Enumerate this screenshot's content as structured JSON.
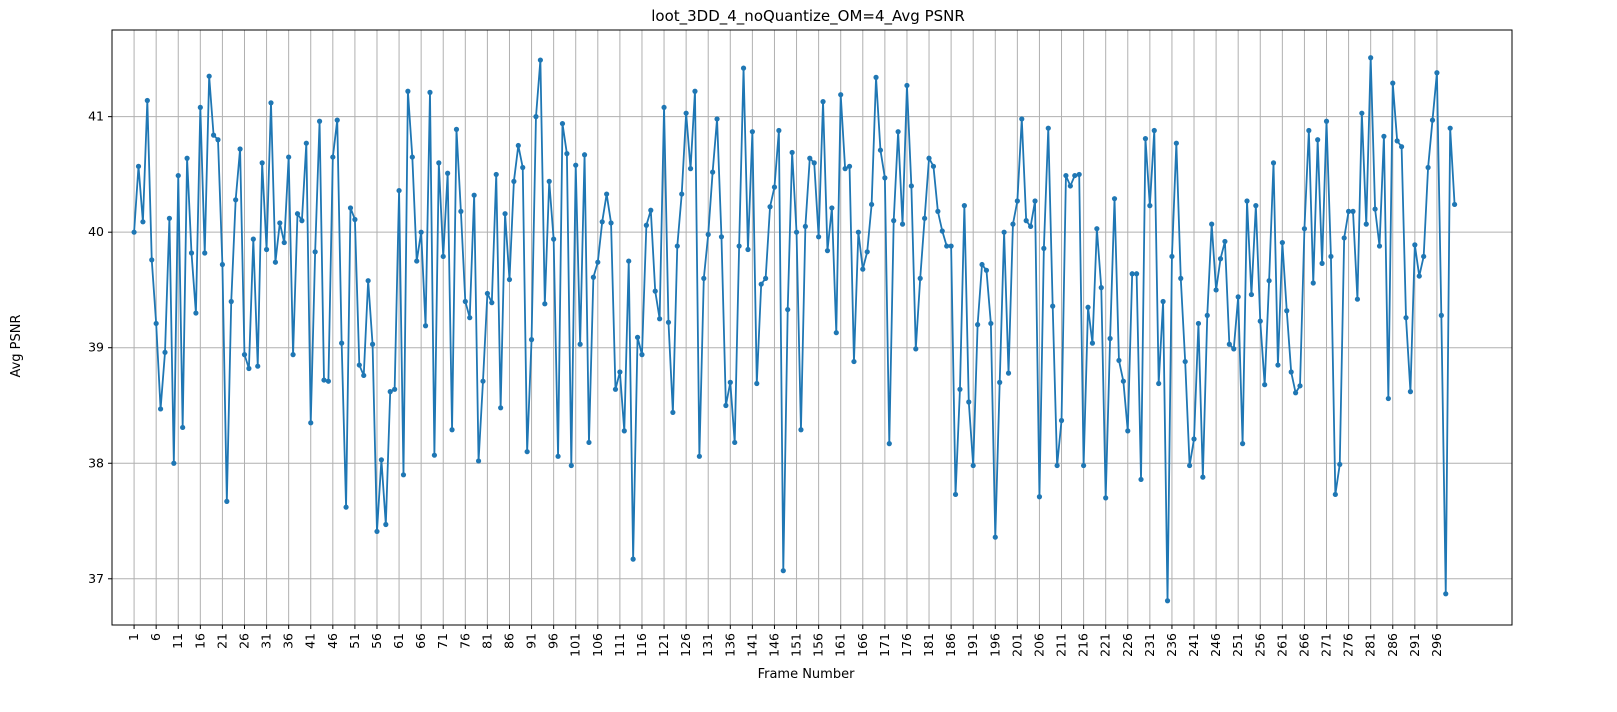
{
  "chart_data": {
    "type": "line",
    "title": "loot_3DD_4_noQuantize_OM=4_Avg PSNR",
    "xlabel": "Frame Number",
    "ylabel": "Avg PSNR",
    "grid": true,
    "ylim": [
      36.6,
      41.75
    ],
    "xlim": [
      -4,
      313
    ],
    "color": "#1f77b4",
    "xticks": [
      1,
      6,
      11,
      16,
      21,
      26,
      31,
      36,
      41,
      46,
      51,
      56,
      61,
      66,
      71,
      76,
      81,
      86,
      91,
      96,
      101,
      106,
      111,
      116,
      121,
      126,
      131,
      136,
      141,
      146,
      151,
      156,
      161,
      166,
      171,
      176,
      181,
      186,
      191,
      196,
      201,
      206,
      211,
      216,
      221,
      226,
      231,
      236,
      241,
      246,
      251,
      256,
      261,
      266,
      271,
      276,
      281,
      286,
      291,
      296
    ],
    "yticks": [
      37,
      38,
      39,
      40,
      41
    ],
    "series": [
      {
        "x_start": 1,
        "values": [
          40.0,
          40.57,
          40.09,
          41.14,
          39.76,
          39.21,
          38.47,
          38.96,
          40.12,
          38.0,
          40.49,
          38.31,
          40.64,
          39.82,
          39.3,
          41.08,
          39.82,
          41.35,
          40.84,
          40.8,
          39.72,
          37.67,
          39.4,
          40.28,
          40.72,
          38.94,
          38.82,
          39.94,
          38.84,
          40.6,
          39.85,
          41.12,
          39.74,
          40.08,
          39.91,
          40.65,
          38.94,
          40.16,
          40.1,
          40.77,
          38.35,
          39.83,
          40.96,
          38.72,
          38.71,
          40.65,
          40.97,
          39.04,
          37.62,
          40.21,
          40.11,
          38.85,
          38.76,
          39.58,
          39.03,
          37.41,
          38.03,
          37.47,
          38.62,
          38.64,
          40.36,
          37.9,
          41.22,
          40.65,
          39.75,
          40.0,
          39.19,
          41.21,
          38.07,
          40.6,
          39.79,
          40.51,
          38.29,
          40.89,
          40.18,
          39.4,
          39.26,
          40.32,
          38.02,
          38.71,
          39.47,
          39.39,
          40.5,
          38.48,
          40.16,
          39.59,
          40.44,
          40.75,
          40.56,
          38.1,
          39.07,
          41.0,
          41.49,
          39.38,
          40.44,
          39.94,
          38.06,
          40.94,
          40.68,
          37.98,
          40.58,
          39.03,
          40.67,
          38.18,
          39.61,
          39.74,
          40.09,
          40.33,
          40.08,
          38.64,
          38.79,
          38.28,
          39.75,
          37.17,
          39.09,
          38.94,
          40.06,
          40.19,
          39.49,
          39.25,
          41.08,
          39.22,
          38.44,
          39.88,
          40.33,
          41.03,
          40.55,
          41.22,
          38.06,
          39.6,
          39.98,
          40.52,
          40.98,
          39.96,
          38.5,
          38.7,
          38.18,
          39.88,
          41.42,
          39.85,
          40.87,
          38.69,
          39.55,
          39.6,
          40.22,
          40.39,
          40.88,
          37.07,
          39.33,
          40.69,
          40.0,
          38.29,
          40.05,
          40.64,
          40.6,
          39.96,
          41.13,
          39.84,
          40.21,
          39.13,
          41.19,
          40.55,
          40.57,
          38.88,
          40.0,
          39.68,
          39.83,
          40.24,
          41.34,
          40.71,
          40.47,
          38.17,
          40.1,
          40.87,
          40.07,
          41.27,
          40.4,
          38.99,
          39.6,
          40.12,
          40.64,
          40.57,
          40.18,
          40.01,
          39.88,
          39.88,
          37.73,
          38.64,
          40.23,
          38.53,
          37.98,
          39.2,
          39.72,
          39.67,
          39.21,
          37.36,
          38.7,
          40.0,
          38.78,
          40.07,
          40.27,
          40.98,
          40.1,
          40.05,
          40.27,
          37.71,
          39.86,
          40.9,
          39.36,
          37.98,
          38.37,
          40.49,
          40.4,
          40.49,
          40.5,
          37.98,
          39.35,
          39.04,
          40.03,
          39.52,
          37.7,
          39.08,
          40.29,
          38.89,
          38.71,
          38.28,
          39.64,
          39.64,
          37.86,
          40.81,
          40.23,
          40.88,
          38.69,
          39.4,
          36.81,
          39.79,
          40.77,
          39.6,
          38.88,
          37.98,
          38.21,
          39.21,
          37.88,
          39.28,
          40.07,
          39.5,
          39.77,
          39.92,
          39.03,
          38.99,
          39.44,
          38.17,
          40.27,
          39.46,
          40.23,
          39.23,
          38.68,
          39.58,
          40.6,
          38.85,
          39.91,
          39.32,
          38.79,
          38.61,
          38.67,
          40.03,
          40.88,
          39.56,
          40.8,
          39.73,
          40.96,
          39.79,
          37.73,
          37.99,
          39.95,
          40.18,
          40.18,
          39.42,
          41.03,
          40.07,
          41.51,
          40.2,
          39.88,
          40.83,
          38.56,
          41.29,
          40.79,
          40.74,
          39.26,
          38.62,
          39.89,
          39.62,
          39.79,
          40.56,
          40.97,
          41.38,
          39.28,
          36.87,
          40.9,
          40.24
        ]
      }
    ]
  }
}
